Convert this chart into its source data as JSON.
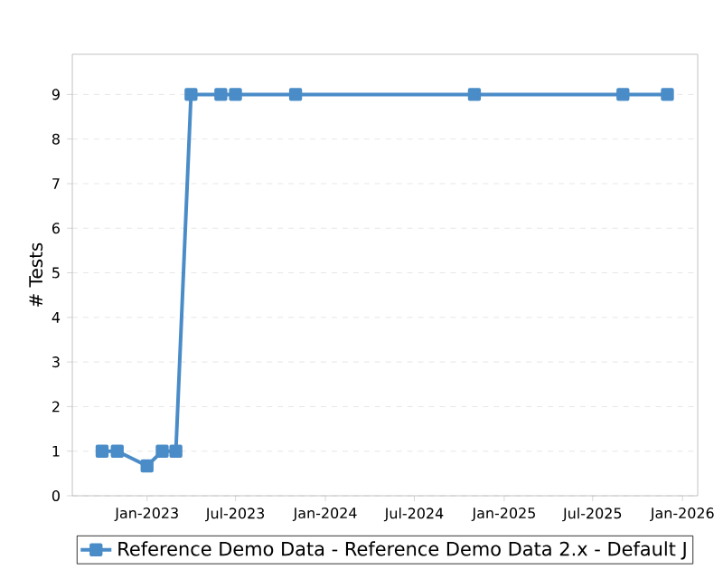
{
  "chart_data": {
    "type": "line",
    "ylabel": "# Tests",
    "x": [
      "2022-10-01",
      "2022-11-01",
      "2023-01-01",
      "2023-02-01",
      "2023-03-01",
      "2023-04-01",
      "2023-06-01",
      "2023-07-01",
      "2023-11-01",
      "2024-11-01",
      "2025-09-01",
      "2025-12-01"
    ],
    "series": [
      {
        "name": "Reference Demo Data - Reference Demo Data 2.x - Default J",
        "color": "#4a8cc8",
        "values": [
          1,
          1,
          0.67,
          1,
          1,
          9,
          9,
          9,
          9,
          9,
          9,
          9
        ]
      }
    ],
    "xlim": [
      "2022-08-01",
      "2026-02-01"
    ],
    "xticks": [
      {
        "value": "2023-01-01",
        "label": "Jan-2023"
      },
      {
        "value": "2023-07-01",
        "label": "Jul-2023"
      },
      {
        "value": "2024-01-01",
        "label": "Jan-2024"
      },
      {
        "value": "2024-07-01",
        "label": "Jul-2024"
      },
      {
        "value": "2025-01-01",
        "label": "Jan-2025"
      },
      {
        "value": "2025-07-01",
        "label": "Jul-2025"
      },
      {
        "value": "2026-01-01",
        "label": "Jan-2026"
      }
    ],
    "ylim": [
      0,
      9.9
    ],
    "yticks": [
      0,
      1,
      2,
      3,
      4,
      5,
      6,
      7,
      8,
      9
    ],
    "grid": "y",
    "legend": "bottom",
    "marker": "square",
    "line_style": "solid"
  }
}
